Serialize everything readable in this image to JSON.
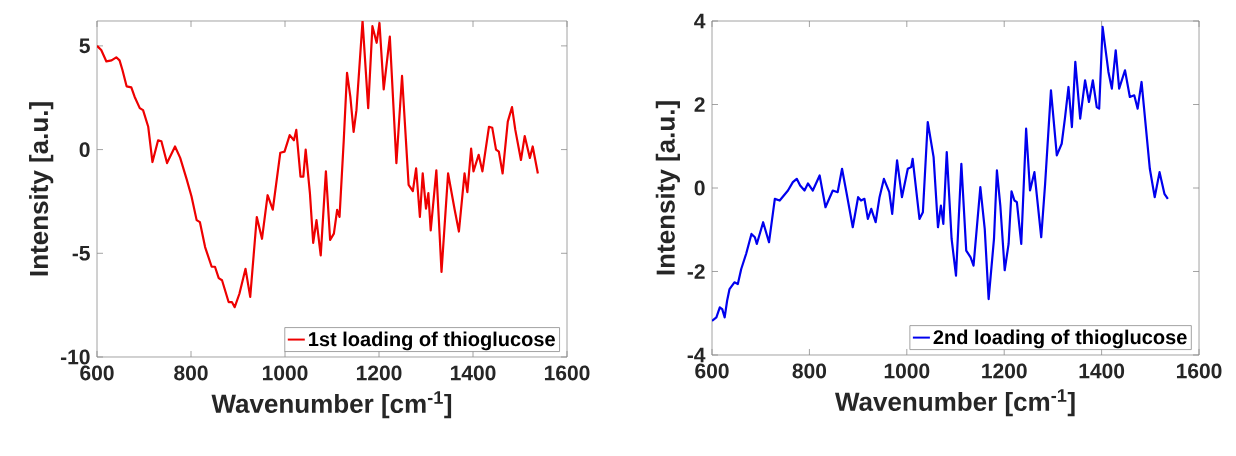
{
  "chart_data": [
    {
      "type": "line",
      "xlabel": "Wavenumber [cm$^{-1}$]",
      "ylabel": "Intensity [a.u.]",
      "xlim": [
        600,
        1600
      ],
      "ylim": [
        -10,
        6.2
      ],
      "xticks": [
        600,
        800,
        1000,
        1200,
        1400,
        1600
      ],
      "yticks": [
        -10,
        -5,
        0,
        5
      ],
      "legend": "bottom right",
      "series": [
        {
          "name": "1st loading of thioglucose",
          "color": "#ee0000",
          "x": [
            600,
            609,
            620,
            631,
            641,
            648,
            654,
            663,
            673,
            680,
            691,
            698,
            709,
            718,
            730,
            737,
            749,
            766,
            777,
            791,
            801,
            812,
            819,
            830,
            844,
            851,
            859,
            866,
            880,
            887,
            893,
            903,
            916,
            926,
            940,
            951,
            963,
            974,
            990,
            999,
            1010,
            1019,
            1024,
            1033,
            1039,
            1044,
            1053,
            1060,
            1067,
            1076,
            1087,
            1096,
            1104,
            1111,
            1116,
            1125,
            1132,
            1139,
            1146,
            1152,
            1165,
            1177,
            1186,
            1195,
            1201,
            1210,
            1223,
            1237,
            1249,
            1263,
            1272,
            1279,
            1287,
            1293,
            1300,
            1305,
            1310,
            1322,
            1333,
            1347,
            1361,
            1370,
            1382,
            1388,
            1396,
            1401,
            1412,
            1420,
            1434,
            1441,
            1449,
            1455,
            1463,
            1474,
            1483,
            1490,
            1502,
            1510,
            1521,
            1527,
            1538
          ],
          "values": [
            5.0,
            4.8,
            4.25,
            4.3,
            4.45,
            4.3,
            3.85,
            3.05,
            3.0,
            2.55,
            2.0,
            1.9,
            1.1,
            -0.6,
            0.45,
            0.4,
            -0.65,
            0.15,
            -0.4,
            -1.45,
            -2.25,
            -3.4,
            -3.5,
            -4.7,
            -5.65,
            -5.65,
            -6.2,
            -6.3,
            -7.35,
            -7.35,
            -7.6,
            -6.95,
            -5.75,
            -7.1,
            -3.25,
            -4.3,
            -2.2,
            -2.9,
            -0.15,
            -0.1,
            0.7,
            0.45,
            0.95,
            -1.3,
            -1.3,
            0.0,
            -2.1,
            -4.5,
            -3.4,
            -5.1,
            -1.05,
            -4.35,
            -4.05,
            -2.9,
            -3.25,
            0.45,
            3.7,
            2.55,
            0.85,
            1.9,
            6.2,
            2.0,
            5.95,
            5.15,
            6.1,
            2.9,
            5.45,
            -0.65,
            3.55,
            -1.7,
            -2.0,
            -0.9,
            -3.25,
            -1.15,
            -2.85,
            -2.1,
            -3.9,
            -1.0,
            -5.9,
            -1.15,
            -2.9,
            -3.95,
            -1.15,
            -2.05,
            0.05,
            -1.05,
            -0.25,
            -1.05,
            1.1,
            1.05,
            0.0,
            -0.1,
            -1.15,
            1.35,
            2.05,
            0.95,
            -0.5,
            0.65,
            -0.4,
            0.15,
            -1.15
          ]
        }
      ]
    },
    {
      "type": "line",
      "xlabel": "Wavenumber [cm$^{-1}$]",
      "ylabel": "Intensity [a.u.]",
      "xlim": [
        600,
        1600
      ],
      "ylim": [
        -4,
        4
      ],
      "xticks": [
        600,
        800,
        1000,
        1200,
        1400,
        1600
      ],
      "yticks": [
        -4,
        -2,
        0,
        2,
        4
      ],
      "legend": "bottom right",
      "series": [
        {
          "name": "2nd loading of thioglucose",
          "color": "#0000ee",
          "x": [
            600,
            609,
            616,
            621,
            626,
            631,
            636,
            646,
            653,
            660,
            670,
            681,
            688,
            692,
            705,
            717,
            729,
            739,
            756,
            766,
            774,
            781,
            790,
            797,
            807,
            821,
            833,
            848,
            858,
            867,
            876,
            889,
            900,
            906,
            913,
            920,
            927,
            936,
            944,
            953,
            964,
            970,
            980,
            990,
            1002,
            1009,
            1012,
            1026,
            1033,
            1043,
            1055,
            1064,
            1070,
            1075,
            1082,
            1092,
            1101,
            1112,
            1122,
            1131,
            1137,
            1151,
            1160,
            1168,
            1179,
            1185,
            1192,
            1201,
            1209,
            1215,
            1221,
            1226,
            1235,
            1245,
            1253,
            1262,
            1276,
            1284,
            1296,
            1308,
            1318,
            1325,
            1332,
            1339,
            1346,
            1356,
            1366,
            1374,
            1382,
            1390,
            1395,
            1402,
            1414,
            1421,
            1429,
            1436,
            1448,
            1458,
            1467,
            1474,
            1482,
            1499,
            1509,
            1519,
            1529,
            1536
          ],
          "values": [
            -3.18,
            -3.1,
            -2.86,
            -2.9,
            -3.1,
            -2.7,
            -2.42,
            -2.26,
            -2.3,
            -1.94,
            -1.58,
            -1.1,
            -1.18,
            -1.34,
            -0.82,
            -1.3,
            -0.26,
            -0.3,
            -0.06,
            0.14,
            0.22,
            0.06,
            -0.06,
            0.11,
            -0.06,
            0.3,
            -0.46,
            -0.06,
            -0.1,
            0.46,
            -0.1,
            -0.94,
            -0.22,
            -0.3,
            -0.26,
            -0.74,
            -0.5,
            -0.82,
            -0.22,
            0.22,
            -0.1,
            -0.62,
            0.66,
            -0.22,
            0.46,
            0.5,
            0.7,
            -0.74,
            -0.58,
            1.58,
            0.74,
            -0.94,
            -0.42,
            -0.86,
            0.86,
            -1.22,
            -2.1,
            0.58,
            -1.5,
            -1.66,
            -1.86,
            0.02,
            -0.98,
            -2.66,
            -1.22,
            0.42,
            -0.42,
            -1.97,
            -1.34,
            -0.08,
            -0.3,
            -0.34,
            -1.34,
            1.42,
            -0.06,
            0.38,
            -1.18,
            0.1,
            2.34,
            0.78,
            1.06,
            1.7,
            2.42,
            1.46,
            3.02,
            1.66,
            2.58,
            2.06,
            2.58,
            1.94,
            1.9,
            3.86,
            2.78,
            2.38,
            3.3,
            2.38,
            2.82,
            2.18,
            2.22,
            1.9,
            2.54,
            0.46,
            -0.22,
            0.38,
            -0.14,
            -0.26
          ]
        }
      ]
    }
  ]
}
